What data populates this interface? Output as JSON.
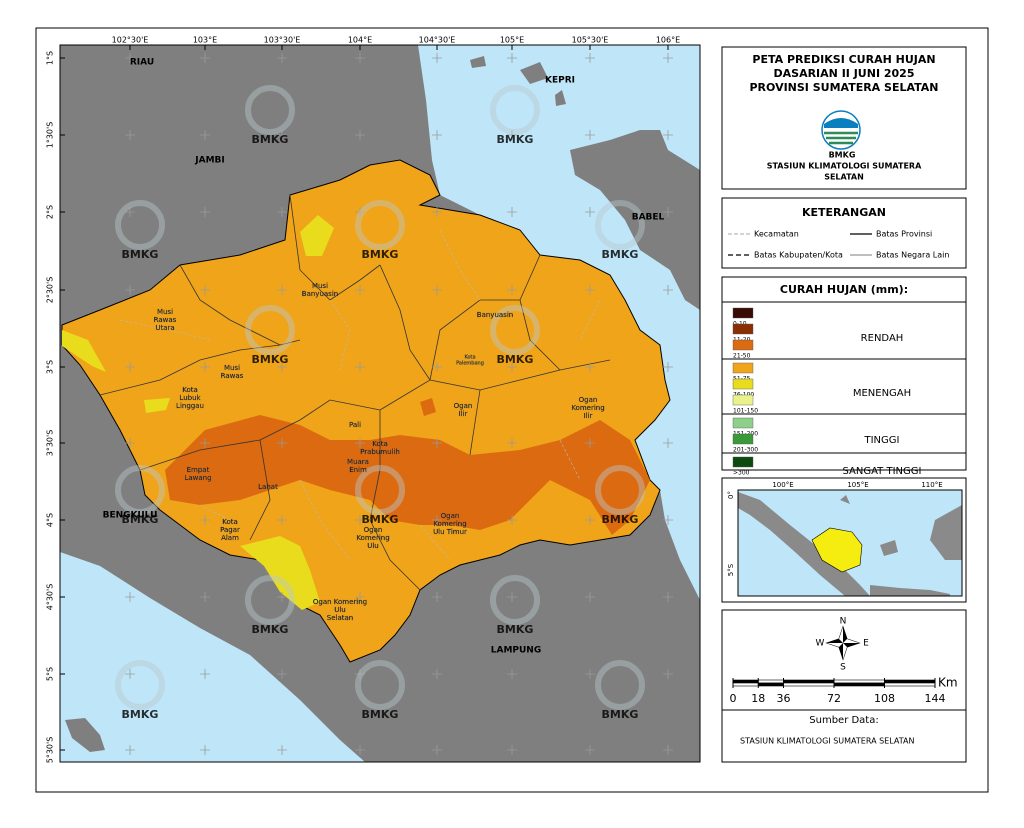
{
  "map": {
    "lon_labels": [
      "102°30'E",
      "103°E",
      "103°30'E",
      "104°E",
      "104°30'E",
      "105°E",
      "105°30'E",
      "106°E"
    ],
    "lat_labels": [
      "1°S",
      "1°30'S",
      "2°S",
      "2°30'S",
      "3°S",
      "3°30'S",
      "4°S",
      "4°30'S",
      "5°S",
      "5°30'S"
    ],
    "region_labels": [
      "RIAU",
      "JAMBI",
      "KEPRI",
      "BABEL",
      "BENGKULU",
      "LAMPUNG"
    ],
    "district_labels": [
      [
        "Musi",
        "Banyuasin"
      ],
      [
        "Musi",
        "Rawas",
        "Utara"
      ],
      [
        "Banyuasin"
      ],
      [
        "Musi",
        "Rawas"
      ],
      [
        "Kota",
        "Lubuk",
        "Linggau"
      ],
      [
        "Pali"
      ],
      [
        "Ogan",
        "Ilir"
      ],
      [
        "Ogan",
        "Komering",
        "Ilir"
      ],
      [
        "Kota",
        "Prabumulih"
      ],
      [
        "Muara",
        "Enim"
      ],
      [
        "Kota",
        "Palembang"
      ],
      [
        "Empat",
        "Lawang"
      ],
      [
        "Lahat"
      ],
      [
        "Kota",
        "Pagar",
        "Alam"
      ],
      [
        "Ogan",
        "Komering",
        "Ulu"
      ],
      [
        "Ogan",
        "Komering",
        "Ulu Timur"
      ],
      [
        "Ogan Komering",
        "Ulu",
        "Selatan"
      ]
    ],
    "watermark": "BMKG"
  },
  "title": {
    "lines": [
      "PETA PREDIKSI CURAH HUJAN",
      "DASARIAN II JUNI 2025",
      "PROVINSI SUMATERA SELATAN"
    ],
    "logo_text": "BMKG",
    "station": [
      "STASIUN KLIMATOLOGI SUMATERA",
      "SELATAN"
    ]
  },
  "legend": {
    "title": "KETERANGAN",
    "items": [
      "Kecamatan",
      "Batas Provinsi",
      "Batas Kabupaten/Kota",
      "Batas Negara Lain"
    ]
  },
  "rainfall": {
    "title": "CURAH HUJAN (mm):",
    "groups": [
      {
        "name": "RENDAH",
        "classes": [
          {
            "label": "0-10",
            "color": "#3a0a04"
          },
          {
            "label": "11-20",
            "color": "#8a2e06"
          },
          {
            "label": "21-50",
            "color": "#dc6a10"
          }
        ]
      },
      {
        "name": "MENENGAH",
        "classes": [
          {
            "label": "51-75",
            "color": "#f0a419"
          },
          {
            "label": "76-100",
            "color": "#e8dc1c"
          },
          {
            "label": "101-150",
            "color": "#eaf28a"
          }
        ]
      },
      {
        "name": "TINGGI",
        "classes": [
          {
            "label": "151-200",
            "color": "#8ed08a"
          },
          {
            "label": "201-300",
            "color": "#3a9a3a"
          }
        ]
      },
      {
        "name": "SANGAT TINGGI",
        "classes": [
          {
            "label": ">300",
            "color": "#0c4a10"
          }
        ]
      }
    ]
  },
  "inset": {
    "lon_labels": [
      "100°E",
      "105°E",
      "110°E"
    ],
    "lat_labels": [
      "0°",
      "5°S"
    ]
  },
  "compass": {
    "n": "N",
    "e": "E",
    "s": "S",
    "w": "W"
  },
  "scale": {
    "unit": "Km",
    "ticks": [
      0,
      18,
      36,
      72,
      108,
      144
    ]
  },
  "source": {
    "heading": "Sumber Data:",
    "text": "STASIUN KLIMATOLOGI SUMATERA SELATAN"
  }
}
